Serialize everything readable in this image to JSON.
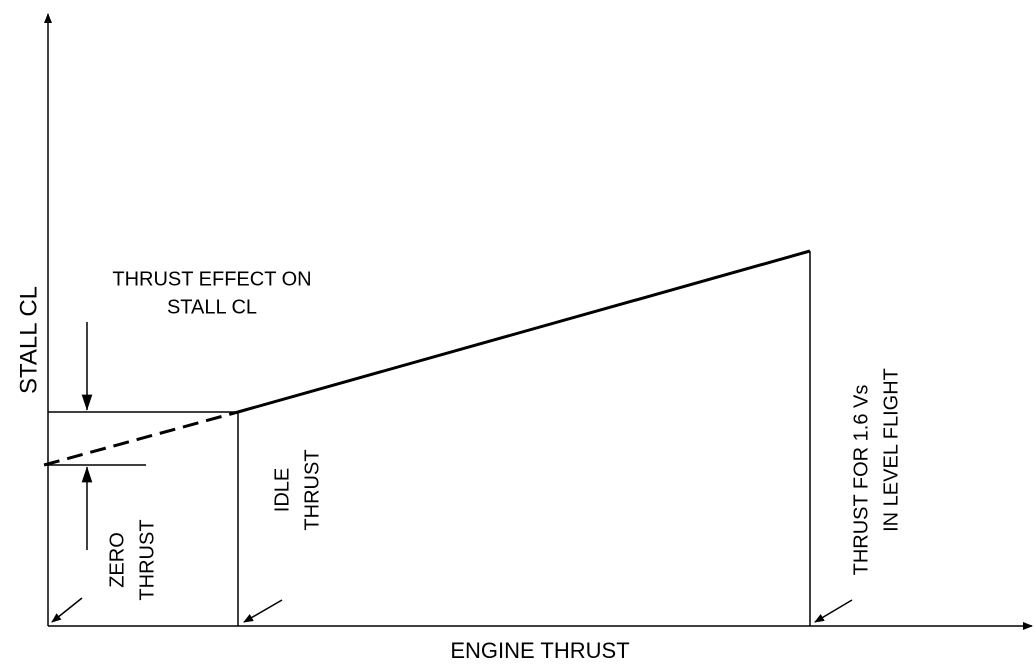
{
  "axes": {
    "y_label": "STALL CL",
    "x_label": "ENGINE THRUST"
  },
  "annotations": {
    "thrust_effect": [
      "THRUST EFFECT ON",
      "STALL CL"
    ],
    "zero_thrust": [
      "ZERO",
      "THRUST"
    ],
    "idle_thrust": [
      "IDLE",
      "THRUST"
    ],
    "level_flight": [
      "THRUST FOR 1.6 Vs",
      "IN LEVEL FLIGHT"
    ]
  }
}
